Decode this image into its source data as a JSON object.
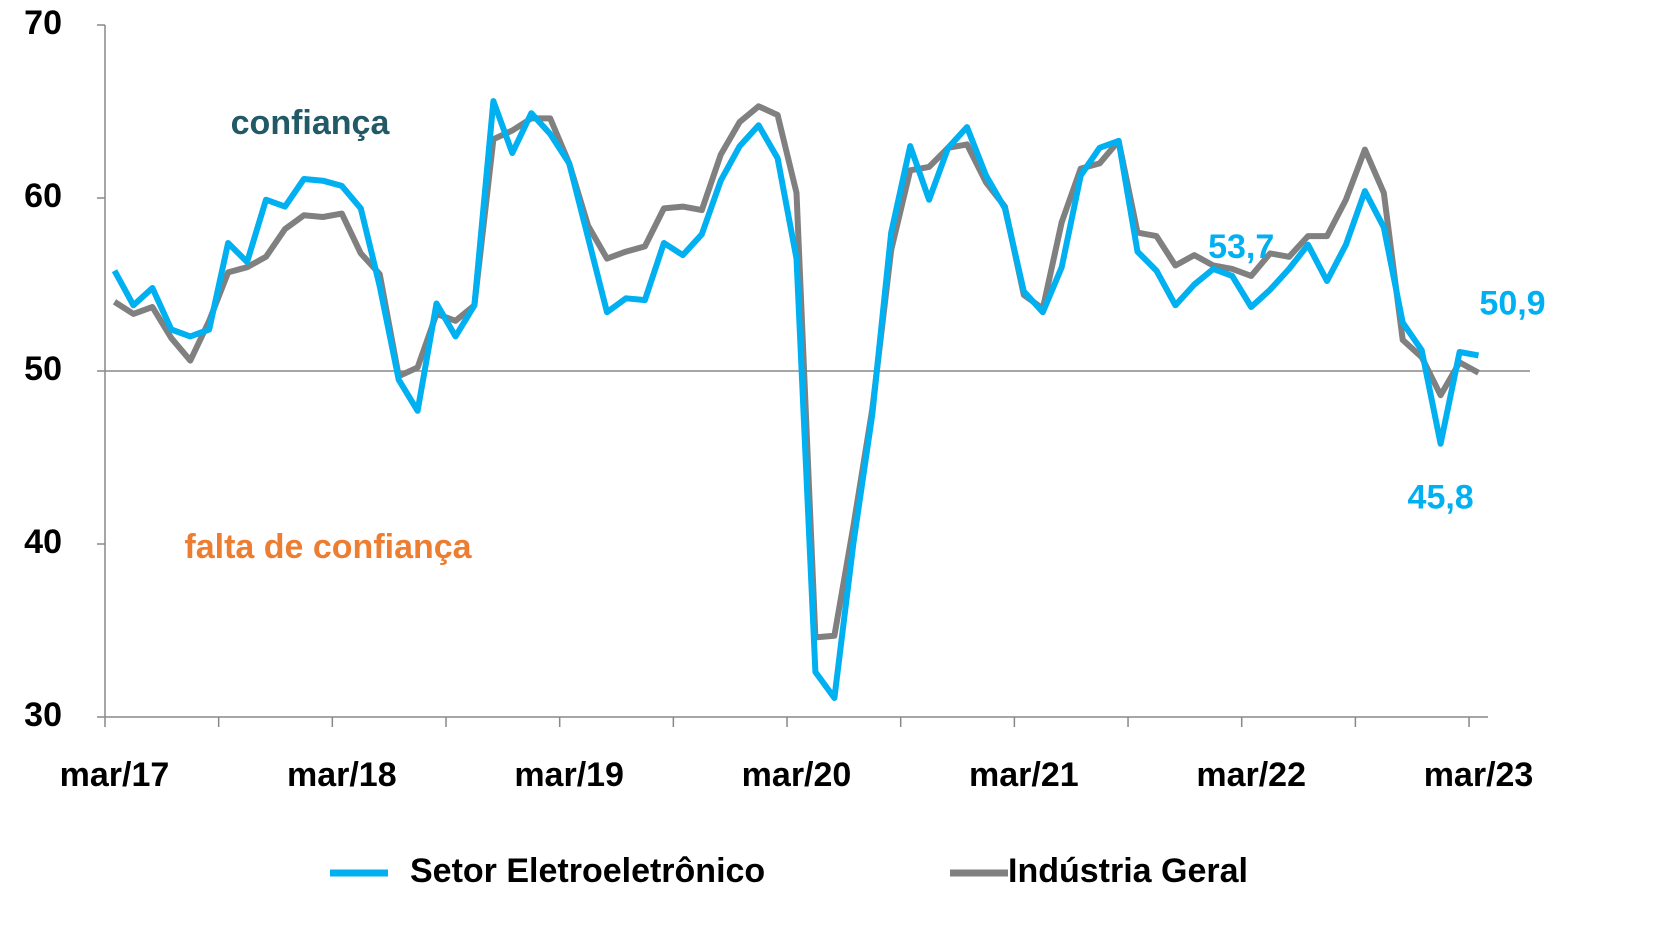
{
  "chart_data": {
    "type": "line",
    "categories": [
      "mar/17",
      null,
      null,
      null,
      null,
      null,
      null,
      null,
      null,
      null,
      null,
      null,
      "mar/18",
      null,
      null,
      null,
      null,
      null,
      null,
      null,
      null,
      null,
      null,
      null,
      "mar/19",
      null,
      null,
      null,
      null,
      null,
      null,
      null,
      null,
      null,
      null,
      null,
      "mar/20",
      null,
      null,
      null,
      null,
      null,
      null,
      null,
      null,
      null,
      null,
      null,
      "mar/21",
      null,
      null,
      null,
      null,
      null,
      null,
      null,
      null,
      null,
      null,
      null,
      "mar/22",
      null,
      null,
      null,
      null,
      null,
      null,
      null,
      null,
      null,
      null,
      null,
      "mar/23"
    ],
    "series": [
      {
        "name": "Setor Eletroeletrônico",
        "color": "#00B0F0",
        "values": [
          55.8,
          53.8,
          54.8,
          52.4,
          52.0,
          52.4,
          57.4,
          56.3,
          59.9,
          59.5,
          61.1,
          61.0,
          60.7,
          59.4,
          54.9,
          49.5,
          47.7,
          53.9,
          52.0,
          53.8,
          65.6,
          62.6,
          64.9,
          63.7,
          62.0,
          57.7,
          53.4,
          54.2,
          54.1,
          57.4,
          56.7,
          57.9,
          61.0,
          63.0,
          64.2,
          62.3,
          56.5,
          32.6,
          31.1,
          40.0,
          47.5,
          58.0,
          63.0,
          59.9,
          62.9,
          64.1,
          61.3,
          59.4,
          54.6,
          53.4,
          56.0,
          61.3,
          62.9,
          63.3,
          56.9,
          55.8,
          53.8,
          55.0,
          55.9,
          55.5,
          53.7,
          54.7,
          55.9,
          57.3,
          55.2,
          57.3,
          60.4,
          58.3,
          52.8,
          51.2,
          45.8,
          51.1,
          50.9
        ],
        "value_labels": [
          null,
          null,
          null,
          null,
          null,
          null,
          null,
          null,
          null,
          null,
          null,
          null,
          null,
          null,
          null,
          null,
          null,
          null,
          null,
          null,
          null,
          null,
          null,
          null,
          null,
          null,
          null,
          null,
          null,
          null,
          null,
          null,
          null,
          null,
          null,
          null,
          null,
          null,
          null,
          null,
          null,
          null,
          null,
          null,
          null,
          null,
          null,
          null,
          null,
          null,
          null,
          null,
          null,
          null,
          null,
          null,
          null,
          null,
          null,
          null,
          "53,7",
          null,
          null,
          null,
          null,
          null,
          null,
          null,
          null,
          null,
          "45,8",
          null,
          "50,9"
        ]
      },
      {
        "name": "Indústria Geral",
        "color": "#808080",
        "values": [
          54.0,
          53.3,
          53.7,
          51.9,
          50.6,
          52.9,
          55.7,
          56.0,
          56.6,
          58.2,
          59.0,
          58.9,
          59.1,
          56.8,
          55.6,
          49.7,
          50.2,
          53.3,
          52.9,
          53.8,
          63.4,
          63.9,
          64.6,
          64.6,
          62.0,
          58.4,
          56.5,
          56.9,
          57.2,
          59.4,
          59.5,
          59.3,
          62.5,
          64.4,
          65.3,
          64.8,
          60.3,
          34.6,
          34.7,
          41.0,
          47.8,
          57.0,
          61.6,
          61.8,
          62.9,
          63.1,
          60.9,
          59.5,
          54.4,
          53.6,
          58.6,
          61.7,
          62.0,
          63.3,
          58.0,
          57.8,
          56.1,
          56.7,
          56.1,
          55.9,
          55.5,
          56.8,
          56.6,
          57.8,
          57.8,
          59.9,
          62.8,
          60.3,
          51.8,
          50.8,
          48.6,
          50.5,
          49.9
        ]
      }
    ],
    "ylim": [
      30,
      70
    ],
    "yticks": [
      30,
      40,
      50,
      60,
      70
    ],
    "reference_line": 50,
    "x_tick_every": 6,
    "annotations": [
      {
        "text": "confiança",
        "color": "#215967"
      },
      {
        "text": "falta de confiança",
        "color": "#ED7D31"
      }
    ],
    "legend": "bottom"
  }
}
